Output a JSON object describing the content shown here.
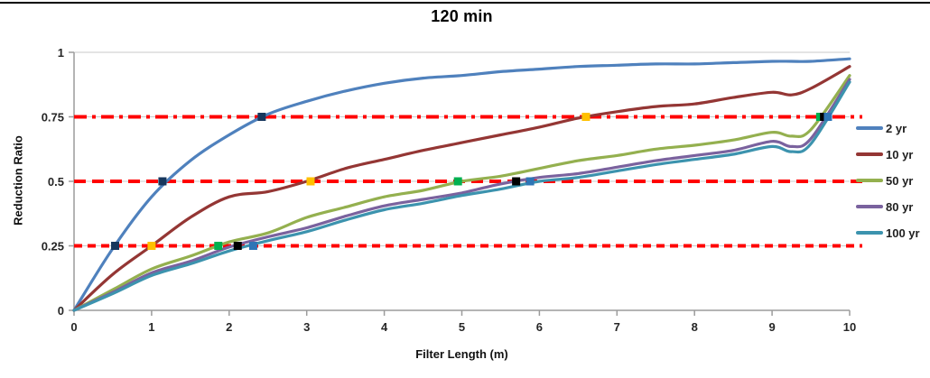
{
  "chart_data": {
    "type": "line",
    "title": "120 min",
    "xlabel": "Filter Length (m)",
    "ylabel": "Reduction Ratio",
    "xlim": [
      0,
      10
    ],
    "ylim": [
      0,
      1
    ],
    "x_ticks": [
      0,
      1,
      2,
      3,
      4,
      5,
      6,
      7,
      8,
      9,
      10
    ],
    "y_ticks": [
      0,
      0.25,
      0.5,
      0.75,
      1
    ],
    "y_tick_labels": [
      "0",
      "0.25",
      "0.5",
      "0.75",
      "1"
    ],
    "grid": "horizontal-only",
    "legend_position": "right",
    "x": [
      0,
      0.5,
      1,
      1.5,
      2,
      2.5,
      3,
      3.5,
      4,
      4.5,
      5,
      5.5,
      6,
      6.5,
      7,
      7.5,
      8,
      8.5,
      9,
      9.25,
      9.5,
      10
    ],
    "series": [
      {
        "name": "2 yr",
        "color": "#4F81BD",
        "values": [
          0,
          0.24,
          0.44,
          0.58,
          0.68,
          0.76,
          0.81,
          0.85,
          0.88,
          0.9,
          0.91,
          0.925,
          0.935,
          0.945,
          0.95,
          0.955,
          0.955,
          0.96,
          0.965,
          0.965,
          0.965,
          0.975
        ],
        "marker_color": "#17375D",
        "crossings": [
          [
            0.53,
            0.25
          ],
          [
            1.14,
            0.5
          ],
          [
            2.42,
            0.75
          ]
        ]
      },
      {
        "name": "10 yr",
        "color": "#943634",
        "values": [
          0,
          0.14,
          0.25,
          0.36,
          0.44,
          0.46,
          0.5,
          0.55,
          0.585,
          0.62,
          0.65,
          0.68,
          0.71,
          0.745,
          0.77,
          0.79,
          0.8,
          0.825,
          0.845,
          0.835,
          0.86,
          0.945
        ],
        "marker_color": "#FFC000",
        "crossings": [
          [
            1.0,
            0.25
          ],
          [
            3.05,
            0.5
          ],
          [
            6.6,
            0.75
          ]
        ]
      },
      {
        "name": "50 yr",
        "color": "#94B04F",
        "values": [
          0,
          0.08,
          0.16,
          0.21,
          0.265,
          0.3,
          0.36,
          0.4,
          0.44,
          0.465,
          0.5,
          0.52,
          0.55,
          0.58,
          0.6,
          0.625,
          0.64,
          0.66,
          0.69,
          0.675,
          0.7,
          0.91
        ],
        "marker_color": "#00B050",
        "crossings": [
          [
            1.86,
            0.25
          ],
          [
            4.95,
            0.5
          ],
          [
            9.62,
            0.75
          ]
        ]
      },
      {
        "name": "80 yr",
        "color": "#7A629E",
        "values": [
          0,
          0.07,
          0.145,
          0.19,
          0.245,
          0.285,
          0.32,
          0.365,
          0.405,
          0.43,
          0.455,
          0.49,
          0.515,
          0.53,
          0.555,
          0.58,
          0.6,
          0.62,
          0.655,
          0.635,
          0.665,
          0.895
        ],
        "marker_color": "#000000",
        "crossings": [
          [
            2.11,
            0.25
          ],
          [
            5.7,
            0.5
          ],
          [
            9.67,
            0.75
          ]
        ]
      },
      {
        "name": "100 yr",
        "color": "#3C93AE",
        "values": [
          0,
          0.065,
          0.135,
          0.18,
          0.23,
          0.27,
          0.305,
          0.35,
          0.39,
          0.415,
          0.445,
          0.47,
          0.5,
          0.515,
          0.54,
          0.565,
          0.585,
          0.605,
          0.635,
          0.615,
          0.645,
          0.885
        ],
        "marker_color": "#2E75B6",
        "crossings": [
          [
            2.31,
            0.25
          ],
          [
            5.88,
            0.5
          ],
          [
            9.72,
            0.75
          ]
        ]
      }
    ],
    "reference_lines": [
      {
        "value": 0.25,
        "color": "#FF0000",
        "dash": [
          9,
          6
        ]
      },
      {
        "value": 0.5,
        "color": "#FF0000",
        "dash": [
          13,
          7
        ]
      },
      {
        "value": 0.75,
        "color": "#FF0000",
        "dash": [
          14,
          6,
          4,
          6
        ]
      }
    ],
    "gridline_color": "#C8C8C8",
    "axis_color": "#9C9C9C"
  }
}
